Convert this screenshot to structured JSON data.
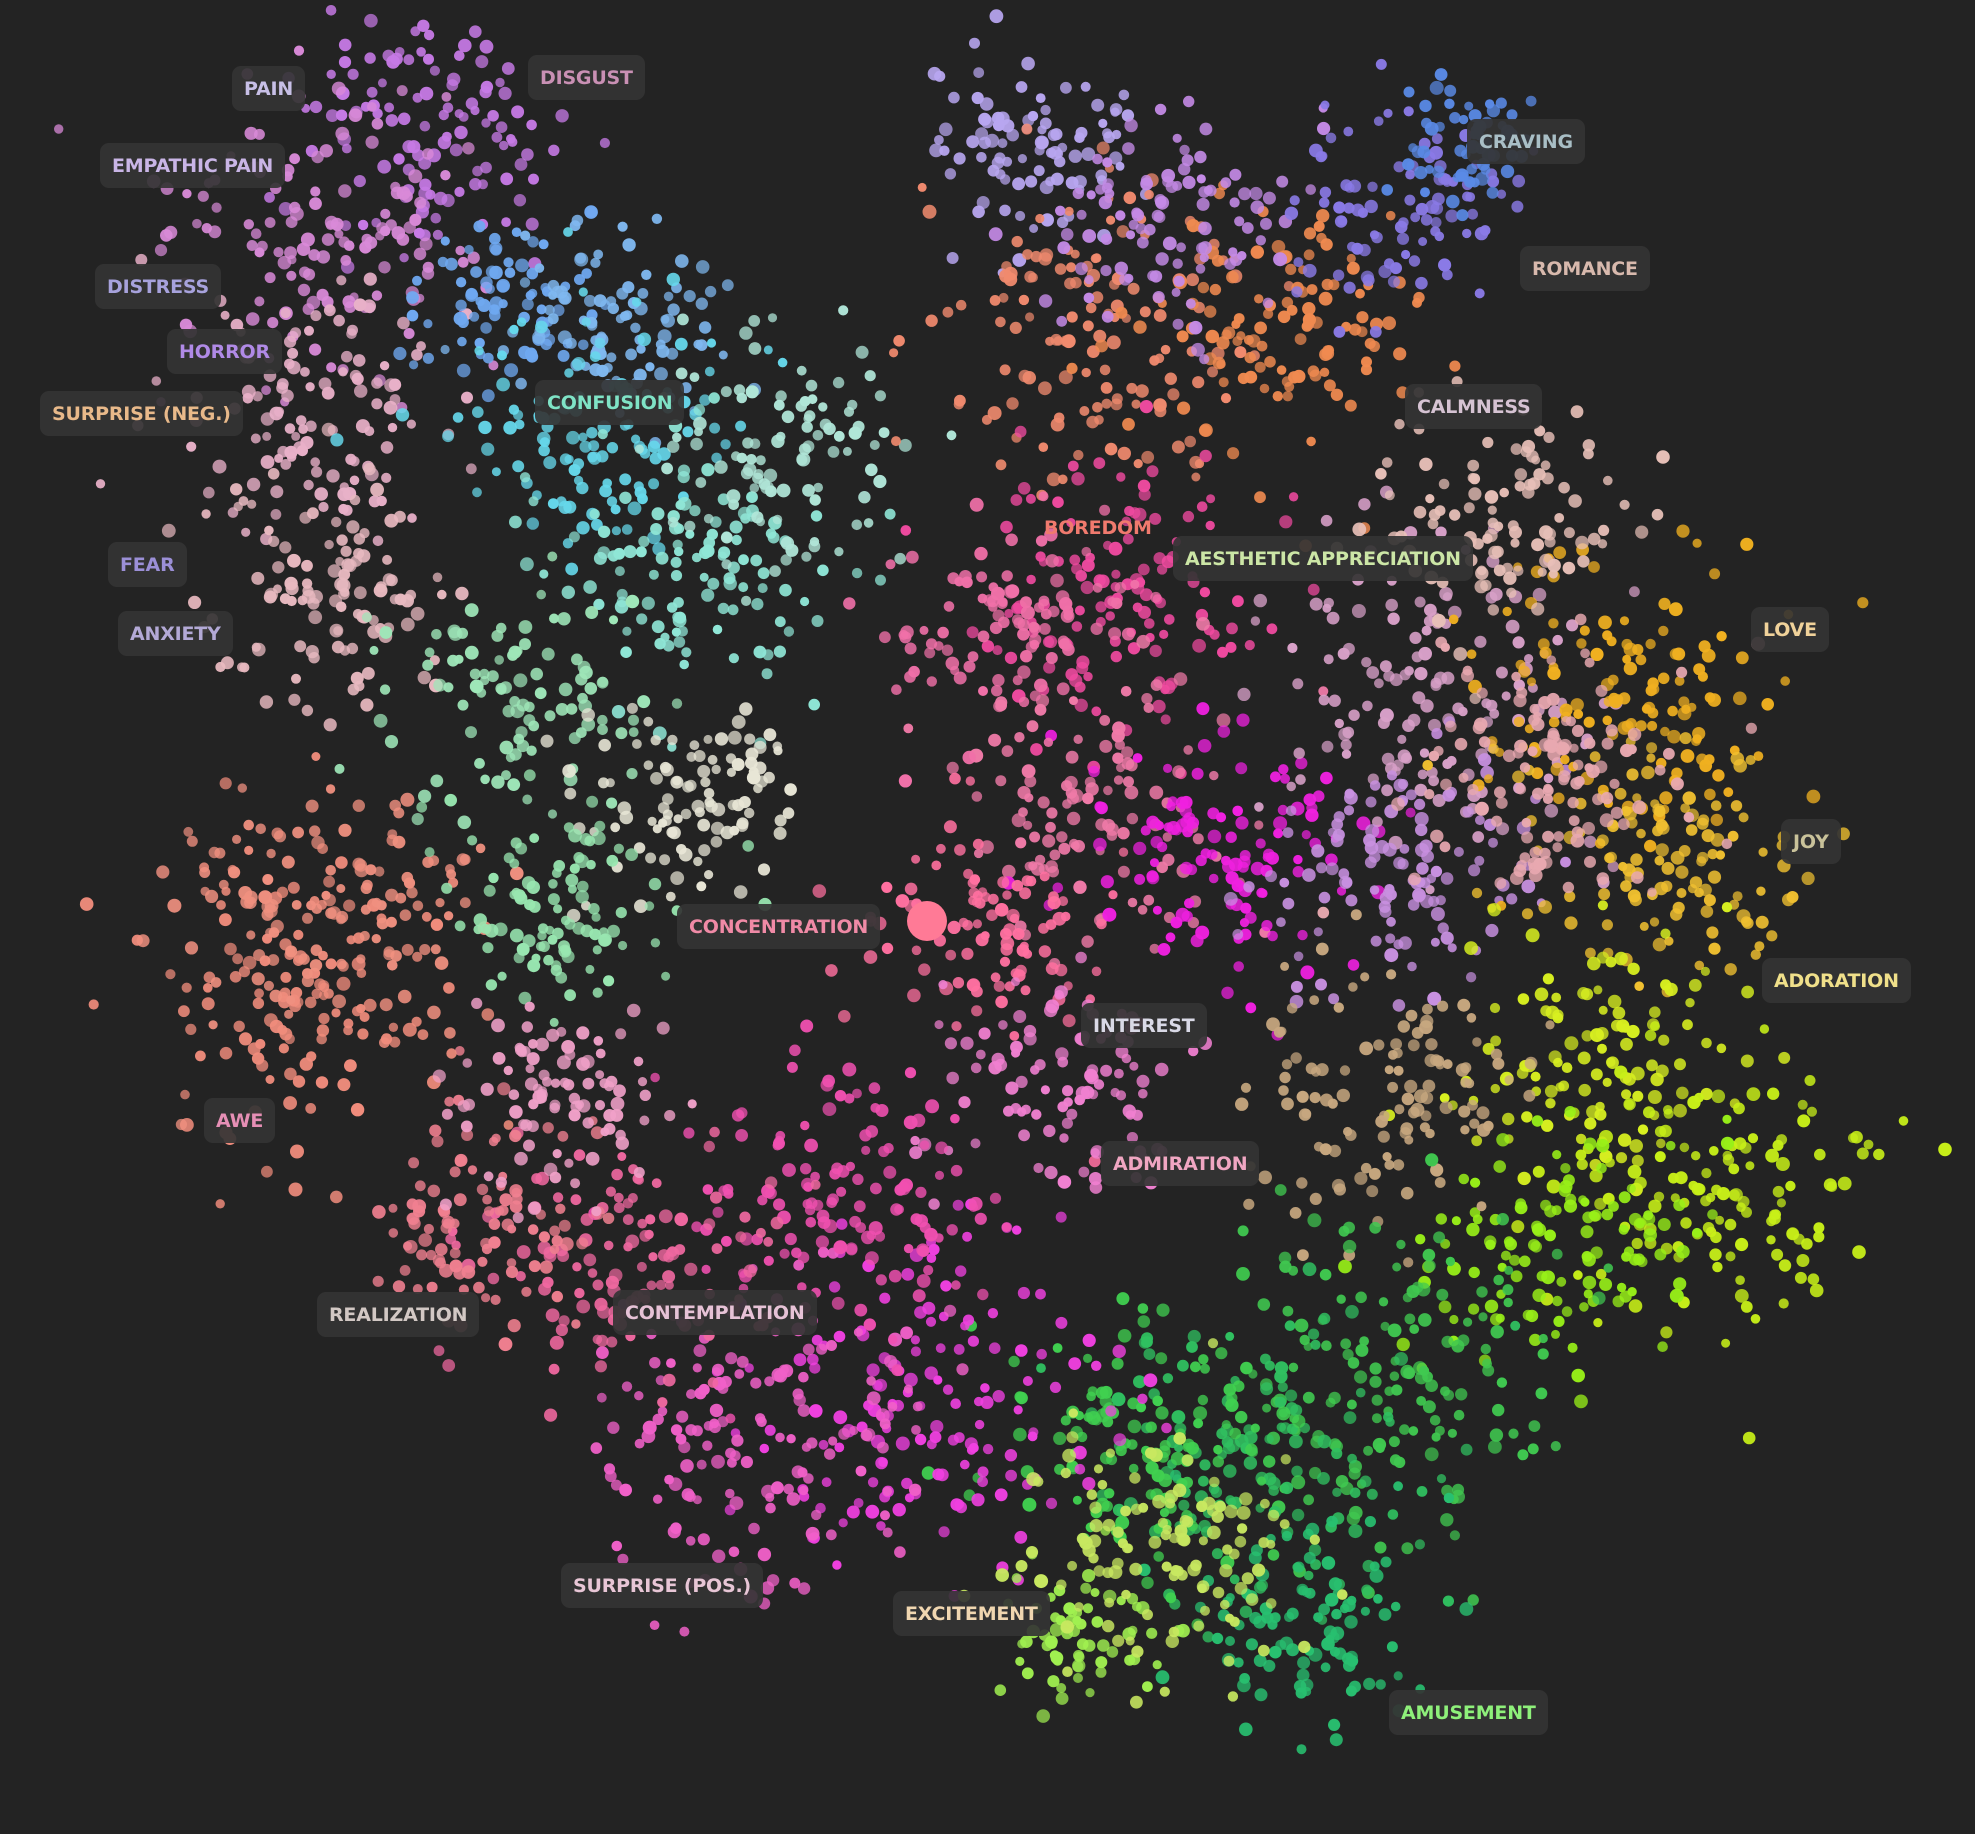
{
  "emotion_labels": {
    "pain": "PAIN",
    "disgust": "DISGUST",
    "empathic_pain": "EMPATHIC PAIN",
    "distress": "DISTRESS",
    "horror": "HORROR",
    "surprise_neg": "SURPRISE (NEG.)",
    "confusion": "CONFUSION",
    "fear": "FEAR",
    "anxiety": "ANXIETY",
    "craving": "CRAVING",
    "romance": "ROMANCE",
    "calmness": "CALMNESS",
    "boredom": "BOREDOM",
    "aesthetic_appreciation": "AESTHETIC APPRECIATION",
    "love": "LOVE",
    "joy": "JOY",
    "adoration": "ADORATION",
    "concentration": "CONCENTRATION",
    "interest": "INTEREST",
    "admiration": "ADMIRATION",
    "awe": "AWE",
    "realization": "REALIZATION",
    "contemplation": "CONTEMPLATION",
    "surprise_pos": "SURPRISE (POS.)",
    "excitement": "EXCITEMENT",
    "amusement": "AMUSEMENT"
  },
  "label_colors": {
    "pain": "#c7bfe6",
    "disgust": "#c990b4",
    "empathic_pain": "#c9b5e6",
    "distress": "#a7a2dc",
    "horror": "#b08ae6",
    "surprise_neg": "#e8b98a",
    "confusion": "#7fe3c6",
    "fear": "#9b8fd6",
    "anxiety": "#b3a9d6",
    "craving": "#a9bfc6",
    "romance": "#d8b9ad",
    "calmness": "#d6c3d3",
    "boredom": "#f07a6e",
    "aesthetic_appreciation": "#cce6a6",
    "love": "#f0d29a",
    "joy": "#c9c29a",
    "adoration": "#f0e08a",
    "concentration": "#f08aa6",
    "interest": "#d9d9e6",
    "admiration": "#f0a6c2",
    "awe": "#e68fb5",
    "realization": "#d2c8c4",
    "contemplation": "#e6c2d6",
    "surprise_pos": "#e8c6d6",
    "excitement": "#f0d6b0",
    "amusement": "#8ef07a"
  },
  "background_color": "#232323",
  "highlight_color": "#ff7a96"
}
